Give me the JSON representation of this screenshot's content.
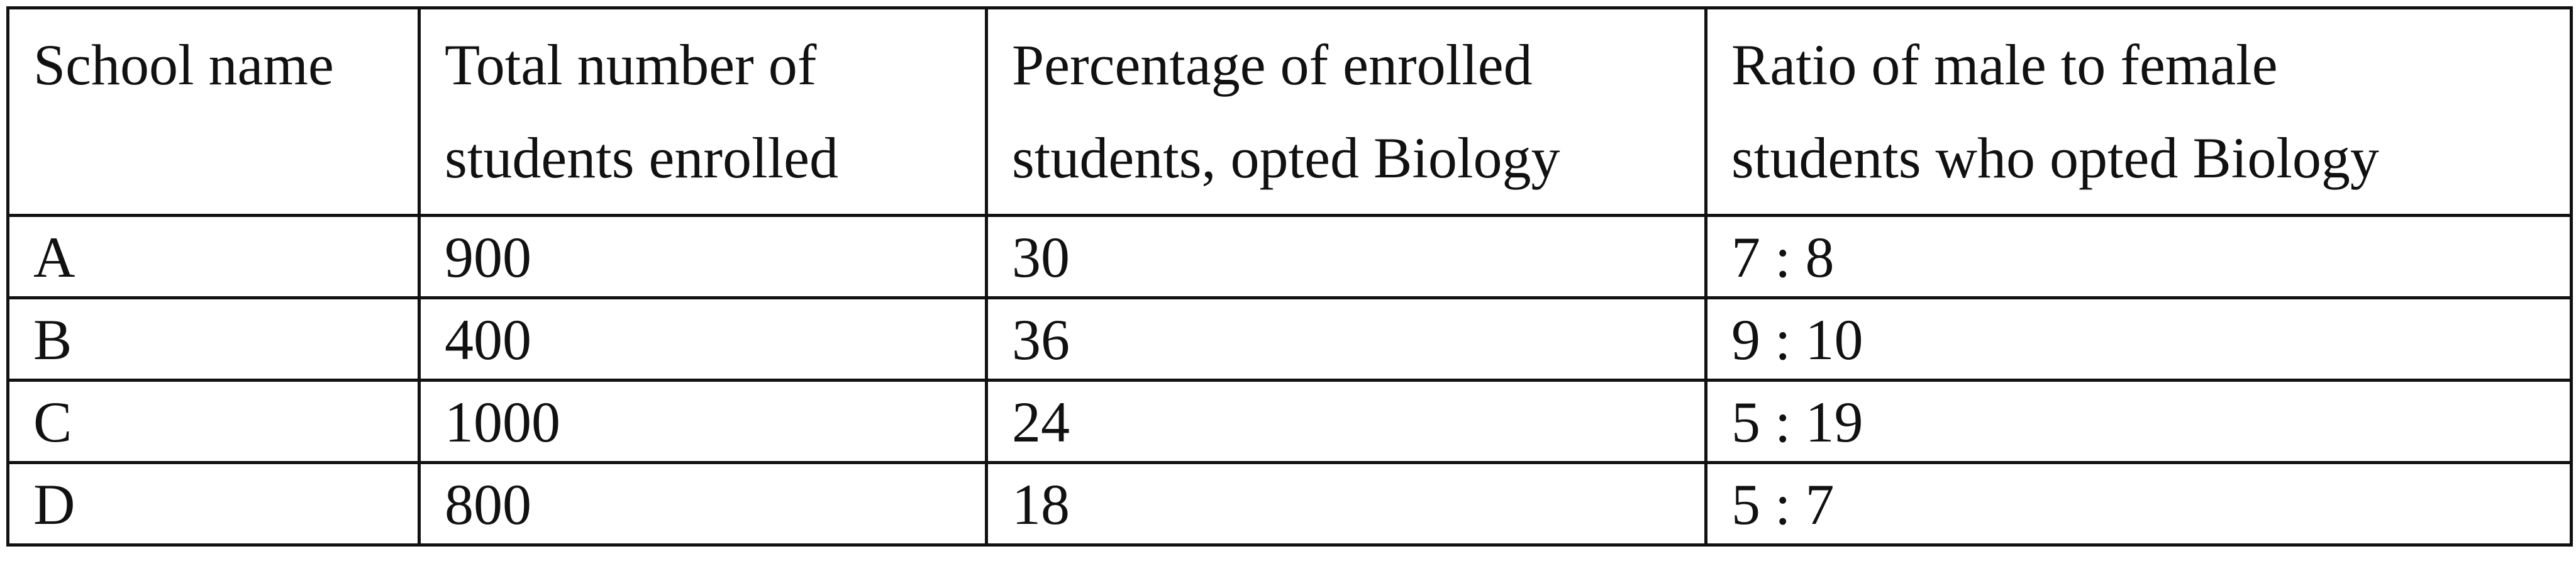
{
  "table": {
    "headers": [
      [
        "School name"
      ],
      [
        "Total number of",
        "students enrolled"
      ],
      [
        "Percentage of enrolled",
        "students, opted Biology"
      ],
      [
        "Ratio of male to female",
        "students who opted Biology"
      ]
    ],
    "rows": [
      [
        "A",
        "900",
        "30",
        "7 : 8"
      ],
      [
        "B",
        "400",
        "36",
        "9 : 10"
      ],
      [
        "C",
        "1000",
        "24",
        "5 : 19"
      ],
      [
        "D",
        "800",
        "18",
        "5 : 7"
      ]
    ]
  }
}
